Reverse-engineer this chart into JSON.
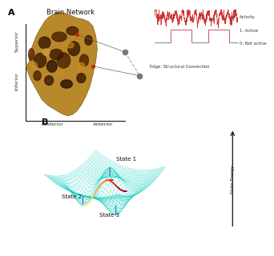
{
  "panel_a_title": "Brain Network",
  "panel_a_xlabel_left": "Posterior",
  "panel_a_xlabel_right": "Anterior",
  "panel_a_ylabel_top": "Superior",
  "panel_a_ylabel_bottom": "Inferior",
  "activity_label": "Activity",
  "active_label": "1: Active",
  "not_active_label": "0: Not active",
  "edge_label": "Edge: Structural Connection",
  "panel_b_labels": [
    "State 1",
    "State 2",
    "State 3"
  ],
  "state_energy_label": "State Energy",
  "label_a": "A",
  "label_b": "B",
  "bg_color": "#ffffff",
  "activity_color": "#cc3333",
  "step_active_color": "#cc4444",
  "step_inactive_color": "#8899cc",
  "node_color": "#777777",
  "surface_wire_color": "#00ccbb",
  "path_colors": [
    "#ffcc00",
    "#ff8800",
    "#ee3300"
  ],
  "blue_line_color": "#4477cc",
  "arrow_color": "#222222",
  "label_fontsize": 8,
  "title_fontsize": 6,
  "tick_fontsize": 4.5,
  "state_label_fontsize": 5
}
